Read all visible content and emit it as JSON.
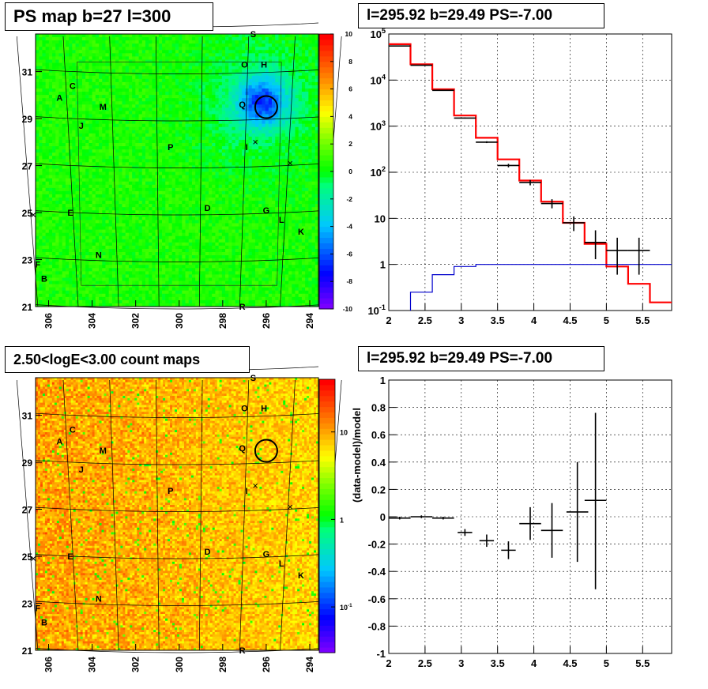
{
  "panels": {
    "ps_map": {
      "title": "PS map b=27 l=300"
    },
    "spectrum": {
      "title": "l=295.92 b=29.49 PS=-7.00"
    },
    "count_map": {
      "title": "2.50<logE<3.00 count maps"
    },
    "residual": {
      "title": "l=295.92 b=29.49 PS=-7.00"
    }
  },
  "chart_data": [
    {
      "id": "ps_map",
      "type": "heatmap",
      "title": "PS map b=27 l=300",
      "xlabel": "",
      "ylabel": "",
      "x_ticks": [
        306,
        304,
        302,
        300,
        298,
        296,
        294
      ],
      "y_ticks": [
        21,
        23,
        25,
        27,
        29,
        31
      ],
      "xlim": [
        306.6,
        293.6
      ],
      "ylim": [
        21,
        32.6
      ],
      "colorbar": {
        "min": -10,
        "max": 10,
        "ticks": [
          -10,
          -8,
          -6,
          -4,
          -2,
          0,
          2,
          4,
          6,
          8,
          10
        ]
      },
      "background_value": 0.5,
      "features": [
        {
          "label": "cyan-blob",
          "l": 296.2,
          "b": 29.7,
          "value": -6
        }
      ],
      "source_circle": {
        "l": 296.0,
        "b": 29.49
      },
      "source_labels": [
        {
          "text": "S",
          "l": 296.6,
          "b": 32.6
        },
        {
          "text": "O",
          "l": 297.0,
          "b": 31.3
        },
        {
          "text": "H",
          "l": 296.1,
          "b": 31.3
        },
        {
          "text": "C",
          "l": 304.9,
          "b": 30.4
        },
        {
          "text": "A",
          "l": 305.5,
          "b": 29.9
        },
        {
          "text": "M",
          "l": 303.5,
          "b": 29.5
        },
        {
          "text": "Q",
          "l": 297.1,
          "b": 29.6
        },
        {
          "text": "J",
          "l": 304.5,
          "b": 28.7
        },
        {
          "text": "P",
          "l": 300.4,
          "b": 27.8
        },
        {
          "text": "I",
          "l": 296.9,
          "b": 27.8
        },
        {
          "text": "D",
          "l": 298.7,
          "b": 25.2
        },
        {
          "text": "G",
          "l": 296.0,
          "b": 25.1
        },
        {
          "text": "E",
          "l": 305.0,
          "b": 25.0
        },
        {
          "text": "L",
          "l": 295.3,
          "b": 24.7
        },
        {
          "text": "K",
          "l": 294.4,
          "b": 24.2
        },
        {
          "text": "N",
          "l": 303.7,
          "b": 23.2
        },
        {
          "text": "F",
          "l": 306.5,
          "b": 22.8
        },
        {
          "text": "B",
          "l": 306.2,
          "b": 22.2
        },
        {
          "text": "R",
          "l": 297.1,
          "b": 21.0
        }
      ],
      "cross_markers": [
        {
          "l": 296.5,
          "b": 28.0
        },
        {
          "l": 294.9,
          "b": 27.1
        },
        {
          "l": 306.7,
          "b": 24.9
        }
      ]
    },
    {
      "id": "spectrum",
      "type": "line",
      "title": "l=295.92 b=29.49 PS=-7.00",
      "xlabel": "",
      "ylabel": "",
      "xlim": [
        2,
        5.9
      ],
      "ylim": [
        0.1,
        100000
      ],
      "y_scale": "log",
      "x_ticks": [
        2,
        2.5,
        3,
        3.5,
        4,
        4.5,
        5,
        5.5
      ],
      "y_tick_labels": [
        "10^-1",
        "1",
        "10",
        "10^2",
        "10^3",
        "10^4",
        "10^5"
      ],
      "grid": true,
      "bin_edges": [
        2.0,
        2.3,
        2.6,
        2.9,
        3.2,
        3.5,
        3.8,
        4.1,
        4.4,
        4.7,
        5.0,
        5.3,
        5.6,
        5.9
      ],
      "series": [
        {
          "color": "#ff0000",
          "style": "step",
          "values": [
            60000,
            22000,
            6300,
            1700,
            560,
            190,
            66,
            23,
            8,
            2.8,
            0.9,
            0.38,
            0.15
          ]
        },
        {
          "color": "#0000cc",
          "style": "step",
          "values": [
            0.06,
            0.25,
            0.6,
            0.9,
            1.0,
            1.0,
            1.0,
            1.0,
            1.0,
            1.0,
            1.0,
            1.0,
            1.0
          ]
        },
        {
          "color": "#000000",
          "style": "errorbar",
          "points": [
            {
              "x": 2.15,
              "y": 55000,
              "dx": 0.15,
              "ylo": 54700,
              "yhi": 55300
            },
            {
              "x": 2.45,
              "y": 21000,
              "dx": 0.15,
              "ylo": 20800,
              "yhi": 21200
            },
            {
              "x": 2.75,
              "y": 6000,
              "dx": 0.15,
              "ylo": 5920,
              "yhi": 6080
            },
            {
              "x": 3.05,
              "y": 1500,
              "dx": 0.15,
              "ylo": 1460,
              "yhi": 1540
            },
            {
              "x": 3.35,
              "y": 450,
              "dx": 0.15,
              "ylo": 430,
              "yhi": 470
            },
            {
              "x": 3.65,
              "y": 140,
              "dx": 0.15,
              "ylo": 128,
              "yhi": 152
            },
            {
              "x": 3.95,
              "y": 60,
              "dx": 0.15,
              "ylo": 52,
              "yhi": 68
            },
            {
              "x": 4.25,
              "y": 21,
              "dx": 0.15,
              "ylo": 16.5,
              "yhi": 26
            },
            {
              "x": 4.55,
              "y": 8,
              "dx": 0.15,
              "ylo": 5.3,
              "yhi": 11
            },
            {
              "x": 4.85,
              "y": 3,
              "dx": 0.15,
              "ylo": 1.3,
              "yhi": 5.5
            },
            {
              "x": 5.15,
              "y": 2,
              "dx": 0.15,
              "ylo": 0.6,
              "yhi": 3.8
            },
            {
              "x": 5.45,
              "y": 2,
              "dx": 0.15,
              "ylo": 0.6,
              "yhi": 3.8
            }
          ]
        }
      ]
    },
    {
      "id": "count_map",
      "type": "heatmap",
      "title": "2.50<logE<3.00 count maps",
      "xlabel": "",
      "ylabel": "",
      "x_ticks": [
        306,
        304,
        302,
        300,
        298,
        296,
        294
      ],
      "y_ticks": [
        21,
        23,
        25,
        27,
        29,
        31
      ],
      "xlim": [
        306.6,
        293.6
      ],
      "ylim": [
        21,
        32.6
      ],
      "colorbar": {
        "scale": "log",
        "min": 0.03,
        "max": 40,
        "tick_labels": [
          "10^-1",
          "1",
          "10"
        ]
      },
      "typical_value_range": [
        3,
        15
      ],
      "source_circle": {
        "l": 296.0,
        "b": 29.49
      }
    },
    {
      "id": "residual",
      "type": "scatter",
      "title": "l=295.92 b=29.49 PS=-7.00",
      "xlabel": "",
      "ylabel": "(data-model)/model",
      "xlim": [
        2,
        5.9
      ],
      "ylim": [
        -1,
        1
      ],
      "x_ticks": [
        2,
        2.5,
        3,
        3.5,
        4,
        4.5,
        5,
        5.5
      ],
      "y_ticks": [
        -1,
        -0.8,
        -0.6,
        -0.4,
        -0.2,
        0,
        0.2,
        0.4,
        0.6,
        0.8,
        1
      ],
      "grid": true,
      "points": [
        {
          "x": 2.15,
          "y": -0.01,
          "dx": 0.15,
          "ylo": -0.02,
          "yhi": 0.0
        },
        {
          "x": 2.45,
          "y": 0.0,
          "dx": 0.15,
          "ylo": -0.01,
          "yhi": 0.01
        },
        {
          "x": 2.75,
          "y": -0.01,
          "dx": 0.15,
          "ylo": -0.02,
          "yhi": 0.0
        },
        {
          "x": 3.05,
          "y": -0.115,
          "dx": 0.1,
          "ylo": -0.14,
          "yhi": -0.09
        },
        {
          "x": 3.35,
          "y": -0.175,
          "dx": 0.1,
          "ylo": -0.22,
          "yhi": -0.13
        },
        {
          "x": 3.65,
          "y": -0.245,
          "dx": 0.1,
          "ylo": -0.31,
          "yhi": -0.18
        },
        {
          "x": 3.95,
          "y": -0.05,
          "dx": 0.15,
          "ylo": -0.17,
          "yhi": 0.07
        },
        {
          "x": 4.25,
          "y": -0.1,
          "dx": 0.15,
          "ylo": -0.3,
          "yhi": 0.1
        },
        {
          "x": 4.6,
          "y": 0.035,
          "dx": 0.15,
          "ylo": -0.33,
          "yhi": 0.4
        },
        {
          "x": 4.85,
          "y": 0.12,
          "dx": 0.15,
          "ylo": -0.53,
          "yhi": 0.76
        }
      ]
    }
  ]
}
